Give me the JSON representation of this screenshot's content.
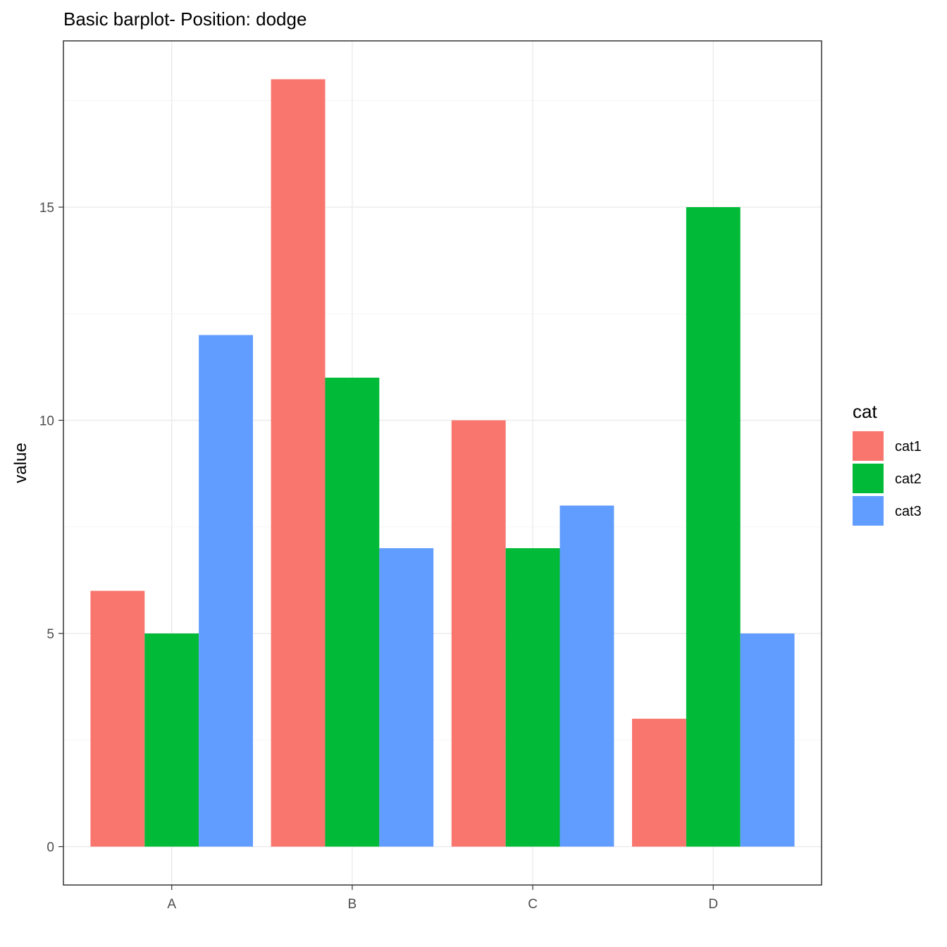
{
  "chart_data": {
    "type": "bar",
    "title": "Basic barplot- Position: dodge",
    "xlabel": "",
    "ylabel": "value",
    "categories": [
      "A",
      "B",
      "C",
      "D"
    ],
    "yticks": [
      0,
      5,
      10,
      15
    ],
    "ylim": [
      -0.9,
      18.9
    ],
    "grid": true,
    "legend": {
      "title": "cat",
      "placement": "right"
    },
    "series": [
      {
        "name": "cat1",
        "color": "#F8766D",
        "values": [
          6,
          18,
          10,
          3
        ]
      },
      {
        "name": "cat2",
        "color": "#00BA38",
        "values": [
          5,
          11,
          7,
          15
        ]
      },
      {
        "name": "cat3",
        "color": "#619CFF",
        "values": [
          12,
          7,
          8,
          5
        ]
      }
    ]
  }
}
